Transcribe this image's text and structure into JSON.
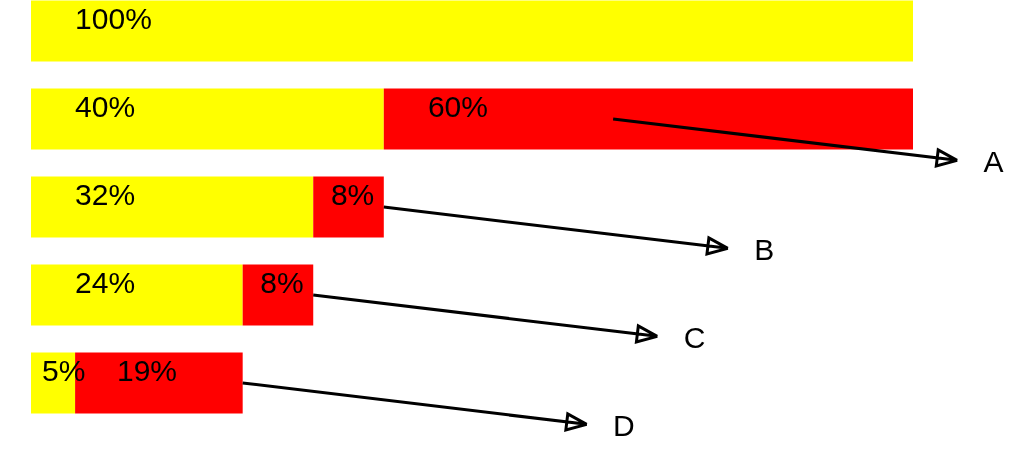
{
  "chart_data": {
    "type": "bar",
    "orientation": "horizontal",
    "stacked": true,
    "categories": [
      null,
      null,
      null,
      null,
      null
    ],
    "series": [
      {
        "color": "#ffff00",
        "values": [
          100,
          40,
          32,
          24,
          5
        ],
        "value_labels": [
          "100%",
          "40%",
          "32%",
          "24%",
          "5%"
        ]
      },
      {
        "color": "#ff0000",
        "values": [
          null,
          60,
          8,
          8,
          19
        ],
        "value_labels": [
          null,
          "60%",
          "8%",
          "8%",
          "19%"
        ]
      }
    ],
    "annotations": [
      "A",
      "B",
      "C",
      "D"
    ]
  }
}
